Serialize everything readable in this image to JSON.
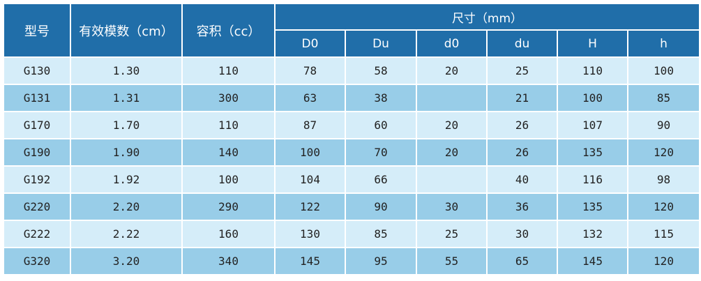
{
  "header": {
    "model": "型号",
    "modulus": "有效模数（cm）",
    "volume": "容积（cc）",
    "dimensions": "尺寸（mm）",
    "sub": [
      "D0",
      "Du",
      "d0",
      "du",
      "H",
      "h"
    ]
  },
  "colors": {
    "header": "#206ea9",
    "row_light": "#d5edf9",
    "row_dark": "#98cde8"
  },
  "rows": [
    [
      "G130",
      "1.30",
      "110",
      "78",
      "58",
      "20",
      "25",
      "110",
      "100"
    ],
    [
      "G131",
      "1.31",
      "300",
      "63",
      "38",
      "",
      "21",
      "100",
      "85"
    ],
    [
      "G170",
      "1.70",
      "110",
      "87",
      "60",
      "20",
      "26",
      "107",
      "90"
    ],
    [
      "G190",
      "1.90",
      "140",
      "100",
      "70",
      "20",
      "26",
      "135",
      "120"
    ],
    [
      "G192",
      "1.92",
      "100",
      "104",
      "66",
      "",
      "40",
      "116",
      "98"
    ],
    [
      "G220",
      "2.20",
      "290",
      "122",
      "90",
      "30",
      "36",
      "135",
      "120"
    ],
    [
      "G222",
      "2.22",
      "160",
      "130",
      "85",
      "25",
      "30",
      "132",
      "115"
    ],
    [
      "G320",
      "3.20",
      "340",
      "145",
      "95",
      "55",
      "65",
      "145",
      "120"
    ]
  ]
}
